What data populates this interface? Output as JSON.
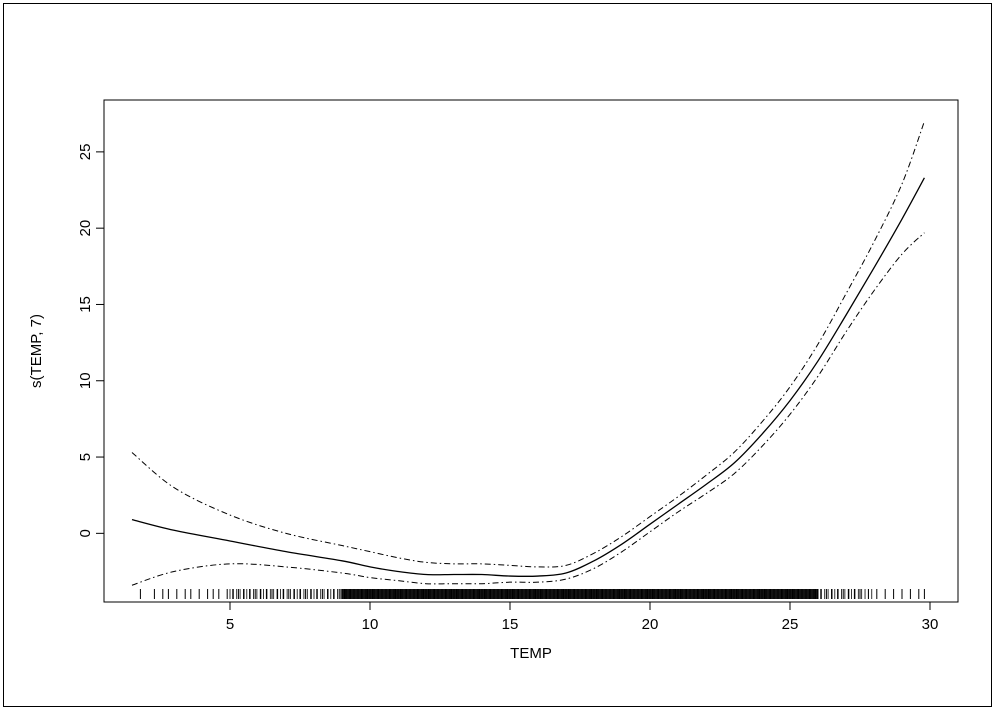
{
  "chart_data": {
    "type": "line",
    "title": "",
    "xlabel": "TEMP",
    "ylabel": "s(TEMP, 7)",
    "xlim": [
      0.5,
      31
    ],
    "ylim": [
      -4.5,
      28.4
    ],
    "x_ticks": [
      5,
      10,
      15,
      20,
      25,
      30
    ],
    "x_tick_labels": [
      "5",
      "10",
      "15",
      "20",
      "25",
      "30"
    ],
    "y_ticks": [
      0,
      5,
      10,
      15,
      20,
      25
    ],
    "y_tick_labels": [
      "0",
      "5",
      "10",
      "15",
      "20",
      "25"
    ],
    "grid": false,
    "series": [
      {
        "style": "solid",
        "x": [
          1.5,
          3,
          5,
          7,
          9,
          10,
          11,
          12,
          13,
          14,
          15,
          16,
          17,
          18,
          19,
          20,
          21,
          22,
          23,
          24,
          25,
          26,
          27,
          28,
          29,
          29.8
        ],
        "y": [
          0.9,
          0.2,
          -0.5,
          -1.2,
          -1.8,
          -2.2,
          -2.5,
          -2.7,
          -2.7,
          -2.7,
          -2.8,
          -2.8,
          -2.6,
          -1.8,
          -0.7,
          0.6,
          1.9,
          3.2,
          4.6,
          6.5,
          8.7,
          11.3,
          14.3,
          17.4,
          20.6,
          23.3
        ]
      },
      {
        "style": "dash-dot",
        "x": [
          1.5,
          3,
          5,
          7,
          9,
          10,
          11,
          12,
          13,
          14,
          15,
          16,
          17,
          18,
          19,
          20,
          21,
          22,
          23,
          24,
          25,
          26,
          27,
          28,
          29,
          29.8
        ],
        "y": [
          5.3,
          3.0,
          1.2,
          0.0,
          -0.8,
          -1.2,
          -1.6,
          -1.9,
          -2.0,
          -2.0,
          -2.1,
          -2.2,
          -2.1,
          -1.3,
          -0.2,
          1.1,
          2.4,
          3.8,
          5.3,
          7.3,
          9.6,
          12.4,
          15.7,
          19.1,
          22.9,
          27.0
        ]
      },
      {
        "style": "dash-dot",
        "x": [
          1.5,
          3,
          5,
          7,
          9,
          10,
          11,
          12,
          13,
          14,
          15,
          16,
          17,
          18,
          19,
          20,
          21,
          22,
          23,
          24,
          25,
          26,
          27,
          28,
          29,
          29.8
        ],
        "y": [
          -3.4,
          -2.5,
          -2.0,
          -2.2,
          -2.6,
          -2.9,
          -3.1,
          -3.3,
          -3.3,
          -3.3,
          -3.2,
          -3.2,
          -3.0,
          -2.3,
          -1.2,
          0.1,
          1.4,
          2.6,
          3.9,
          5.7,
          7.8,
          10.3,
          13.2,
          15.9,
          18.3,
          19.7
        ]
      }
    ],
    "rug_x": [
      1.8,
      2.3,
      2.6,
      2.8,
      3.1,
      3.4,
      3.6,
      3.9,
      4.2,
      4.4,
      4.6,
      4.9,
      5.1,
      5.3,
      5.5,
      5.7,
      5.9,
      6.1,
      6.3,
      6.5,
      6.7,
      6.9,
      7.1,
      7.3,
      7.5,
      7.7,
      7.9,
      8.1,
      8.3,
      8.5,
      8.7,
      8.9,
      9.1,
      9.3,
      9.5,
      9.7,
      9.9,
      10.1,
      10.3,
      10.5,
      10.7,
      10.9,
      11.1,
      11.3,
      11.5,
      11.7,
      11.9,
      12.1,
      12.3,
      12.5,
      12.7,
      12.9,
      13.1,
      13.3,
      13.5,
      13.7,
      13.9,
      14.1,
      14.3,
      14.5,
      14.7,
      14.9,
      15.1,
      15.3,
      15.5,
      15.7,
      15.9,
      16.1,
      16.3,
      16.5,
      16.7,
      16.9,
      17.1,
      17.3,
      17.5,
      17.7,
      17.9,
      18.1,
      18.3,
      18.5,
      18.7,
      18.9,
      19.1,
      19.3,
      19.5,
      19.7,
      19.9,
      20.1,
      20.3,
      20.5,
      20.7,
      20.9,
      21.1,
      21.3,
      21.5,
      21.7,
      21.9,
      22.1,
      22.3,
      22.5,
      22.7,
      22.9,
      23.1,
      23.3,
      23.5,
      23.7,
      23.9,
      24.1,
      24.3,
      24.5,
      24.7,
      24.9,
      25.1,
      25.3,
      25.5,
      25.7,
      25.9,
      26.1,
      26.3,
      26.5,
      26.7,
      26.9,
      27.1,
      27.3,
      27.5,
      27.8,
      28.1,
      28.4,
      28.7,
      29.0,
      29.3,
      29.6,
      29.8
    ]
  }
}
